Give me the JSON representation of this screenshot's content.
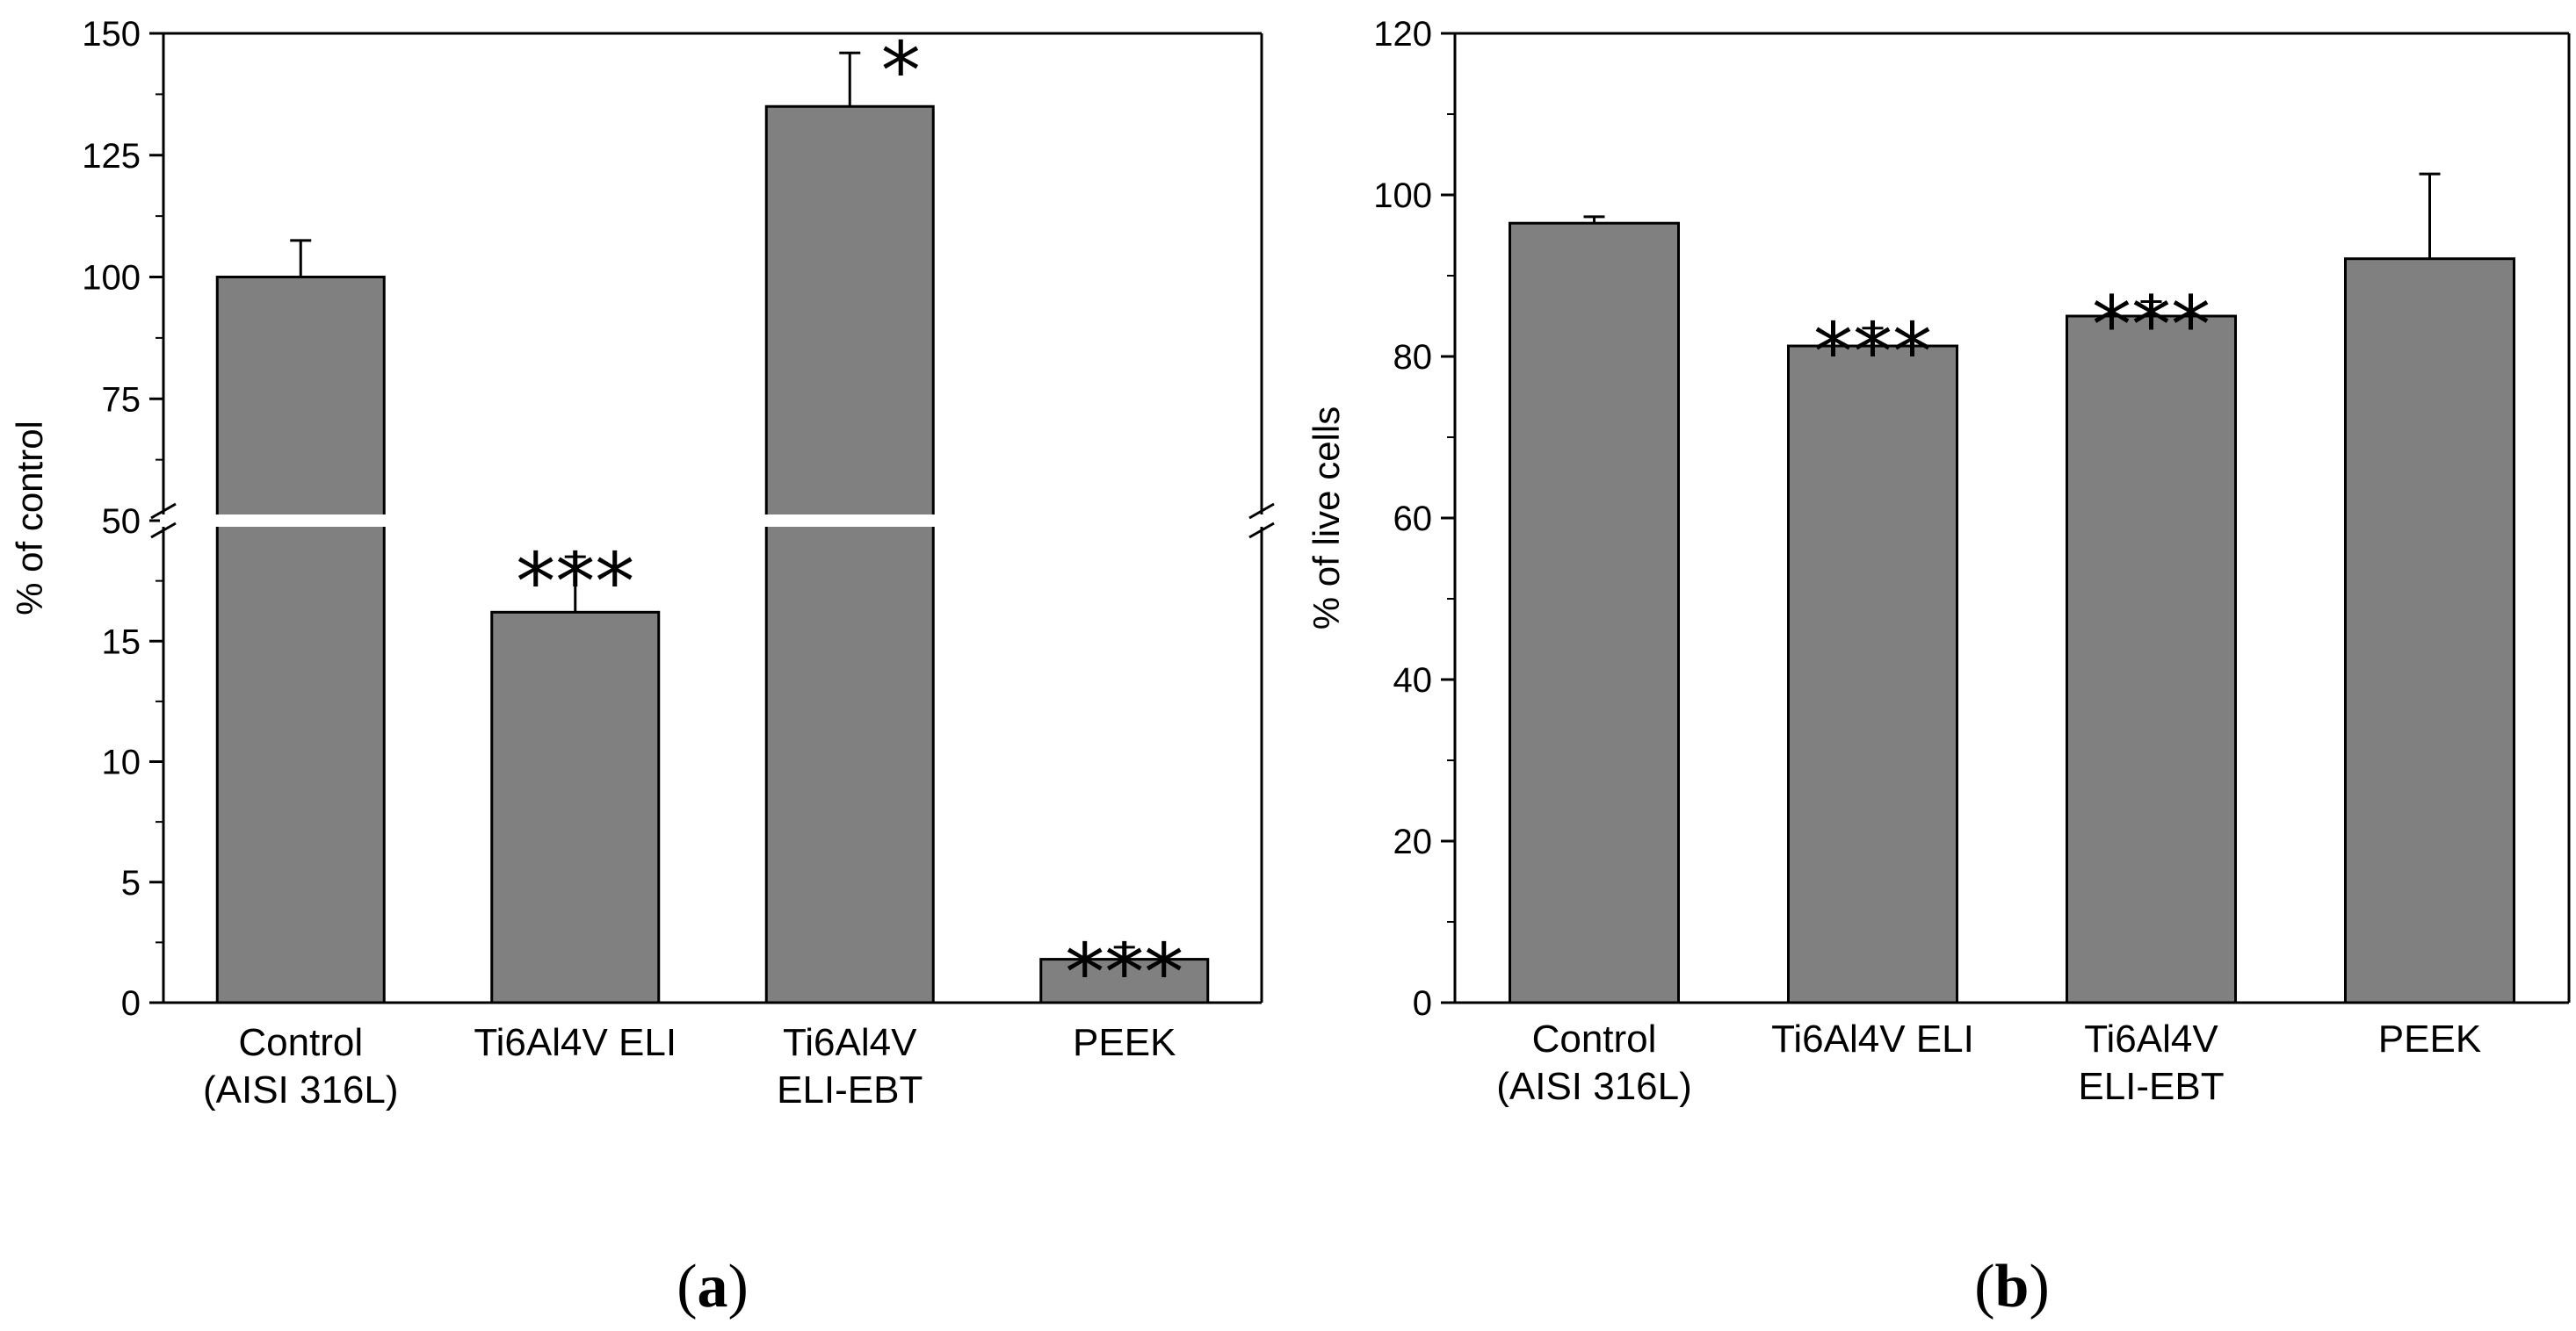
{
  "chart_data": [
    {
      "type": "bar",
      "panel_label": "a",
      "ylabel": "% of control",
      "categories": [
        [
          "Control",
          "(AISI 316L)"
        ],
        [
          "Ti6Al4V ELI"
        ],
        [
          "Ti6Al4V",
          "ELI-EBT"
        ],
        [
          "PEEK"
        ]
      ],
      "values": [
        100,
        16.2,
        135,
        1.8
      ],
      "errors": [
        7.5,
        2.3,
        11,
        0.5
      ],
      "significance": [
        "",
        "***",
        "*",
        "***"
      ],
      "axis_break": {
        "lower_range": [
          0,
          20
        ],
        "upper_range": [
          50,
          150
        ]
      },
      "lower_ticks": [
        0,
        5,
        10,
        15
      ],
      "upper_ticks": [
        50,
        75,
        100,
        125,
        150
      ],
      "bar_color": "#808080"
    },
    {
      "type": "bar",
      "panel_label": "b",
      "ylabel": "% of live cells",
      "categories": [
        [
          "Control",
          "(AISI 316L)"
        ],
        [
          "Ti6Al4V ELI"
        ],
        [
          "Ti6Al4V",
          "ELI-EBT"
        ],
        [
          "PEEK"
        ]
      ],
      "values": [
        96.5,
        81.3,
        85.0,
        92.1
      ],
      "errors": [
        0.8,
        2.2,
        1.8,
        10.5
      ],
      "significance": [
        "",
        "***",
        "***",
        ""
      ],
      "ylim": [
        0,
        120
      ],
      "ticks": [
        0,
        20,
        40,
        60,
        80,
        100,
        120
      ],
      "bar_color": "#808080"
    }
  ]
}
